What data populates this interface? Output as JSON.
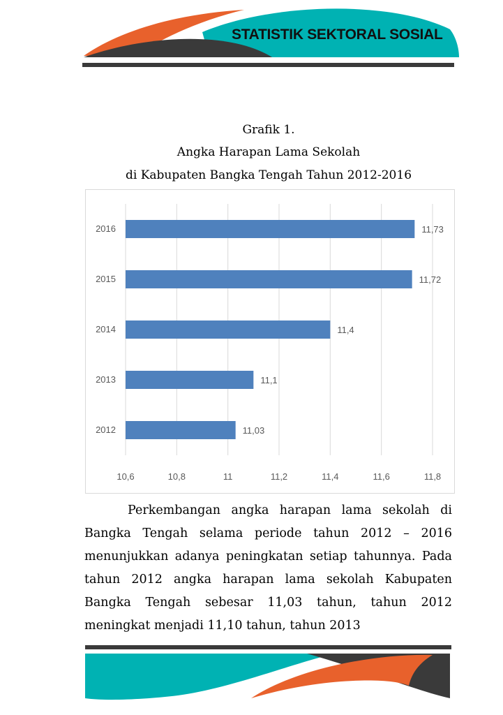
{
  "header": {
    "title": "STATISTIK SEKTORAL SOSIAL"
  },
  "caption": {
    "line1": "Grafik 1.",
    "line2": "Angka Harapan Lama Sekolah",
    "line3": "di Kabupaten Bangka Tengah Tahun 2012-2016"
  },
  "chart_data": {
    "type": "bar",
    "orientation": "horizontal",
    "categories": [
      "2016",
      "2015",
      "2014",
      "2013",
      "2012"
    ],
    "values": [
      11.73,
      11.72,
      11.4,
      11.1,
      11.03
    ],
    "data_labels": [
      "11,73",
      "11,72",
      "11,4",
      "11,1",
      "11,03"
    ],
    "x_ticks": [
      "10,6",
      "10,8",
      "11",
      "11,2",
      "11,4",
      "11,6",
      "11,8"
    ],
    "xlim": [
      10.6,
      11.8
    ],
    "grid": "vertical",
    "legend": "none",
    "bar_color": "#4f81bd"
  },
  "paragraph": {
    "text": "Perkembangan angka harapan lama sekolah di Bangka Tengah selama periode tahun 2012 – 2016 menunjukkan adanya peningkatan setiap tahunnya. Pada tahun 2012 angka harapan lama sekolah Kabupaten Bangka Tengah sebesar 11,03 tahun, tahun 2012 meningkat menjadi 11,10 tahun, tahun 2013"
  },
  "colors": {
    "orange": "#e8612c",
    "teal": "#00b2b3",
    "dark": "#3a3a3a"
  }
}
